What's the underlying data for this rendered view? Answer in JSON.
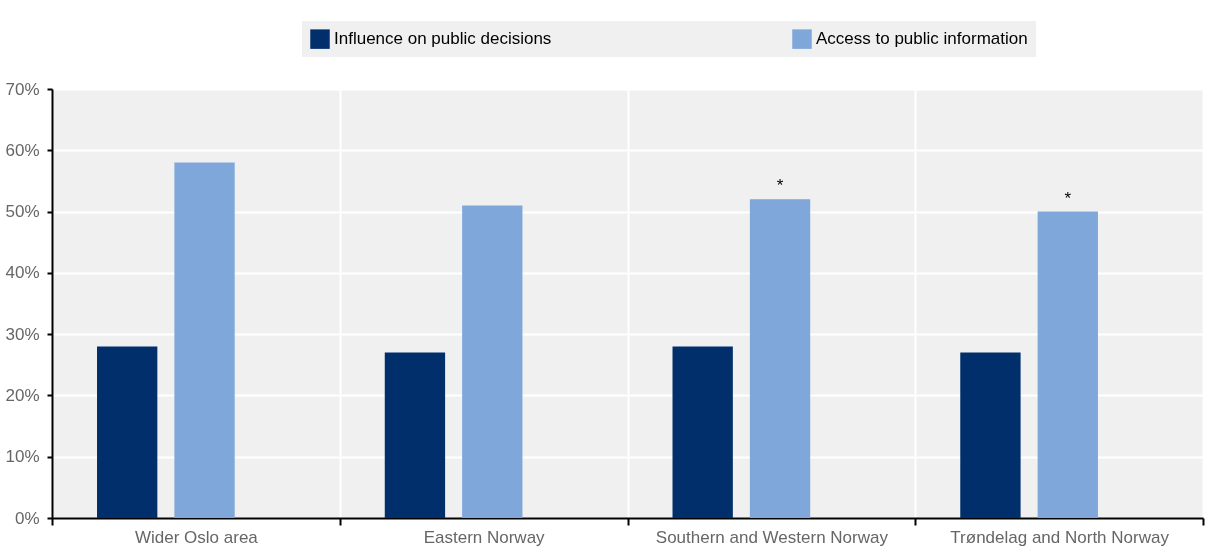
{
  "chart_data": {
    "type": "bar",
    "categories": [
      "Wider Oslo area",
      "Eastern Norway",
      "Southern and Western Norway",
      "Trøndelag and North Norway"
    ],
    "series": [
      {
        "name": "Influence on public decisions",
        "color": "#002f6c",
        "values": [
          28,
          27,
          28,
          27
        ]
      },
      {
        "name": "Access to public information",
        "color": "#7fa7d9",
        "values": [
          58,
          51,
          52,
          50
        ]
      }
    ],
    "ylim": [
      0,
      70
    ],
    "yticks": [
      {
        "value": 0,
        "label": "0%"
      },
      {
        "value": 10,
        "label": "10%"
      },
      {
        "value": 20,
        "label": "20%"
      },
      {
        "value": 30,
        "label": "30%"
      },
      {
        "value": 40,
        "label": "40%"
      },
      {
        "value": 50,
        "label": "50%"
      },
      {
        "value": 60,
        "label": "60%"
      },
      {
        "value": 70,
        "label": "70%"
      }
    ],
    "annotations": [
      {
        "text": "*",
        "x": "Southern and Western Norway",
        "y": 52
      },
      {
        "text": "*",
        "x": "Trøndelag and North Norway",
        "y": 50
      }
    ],
    "grid": true,
    "legend": "top"
  }
}
